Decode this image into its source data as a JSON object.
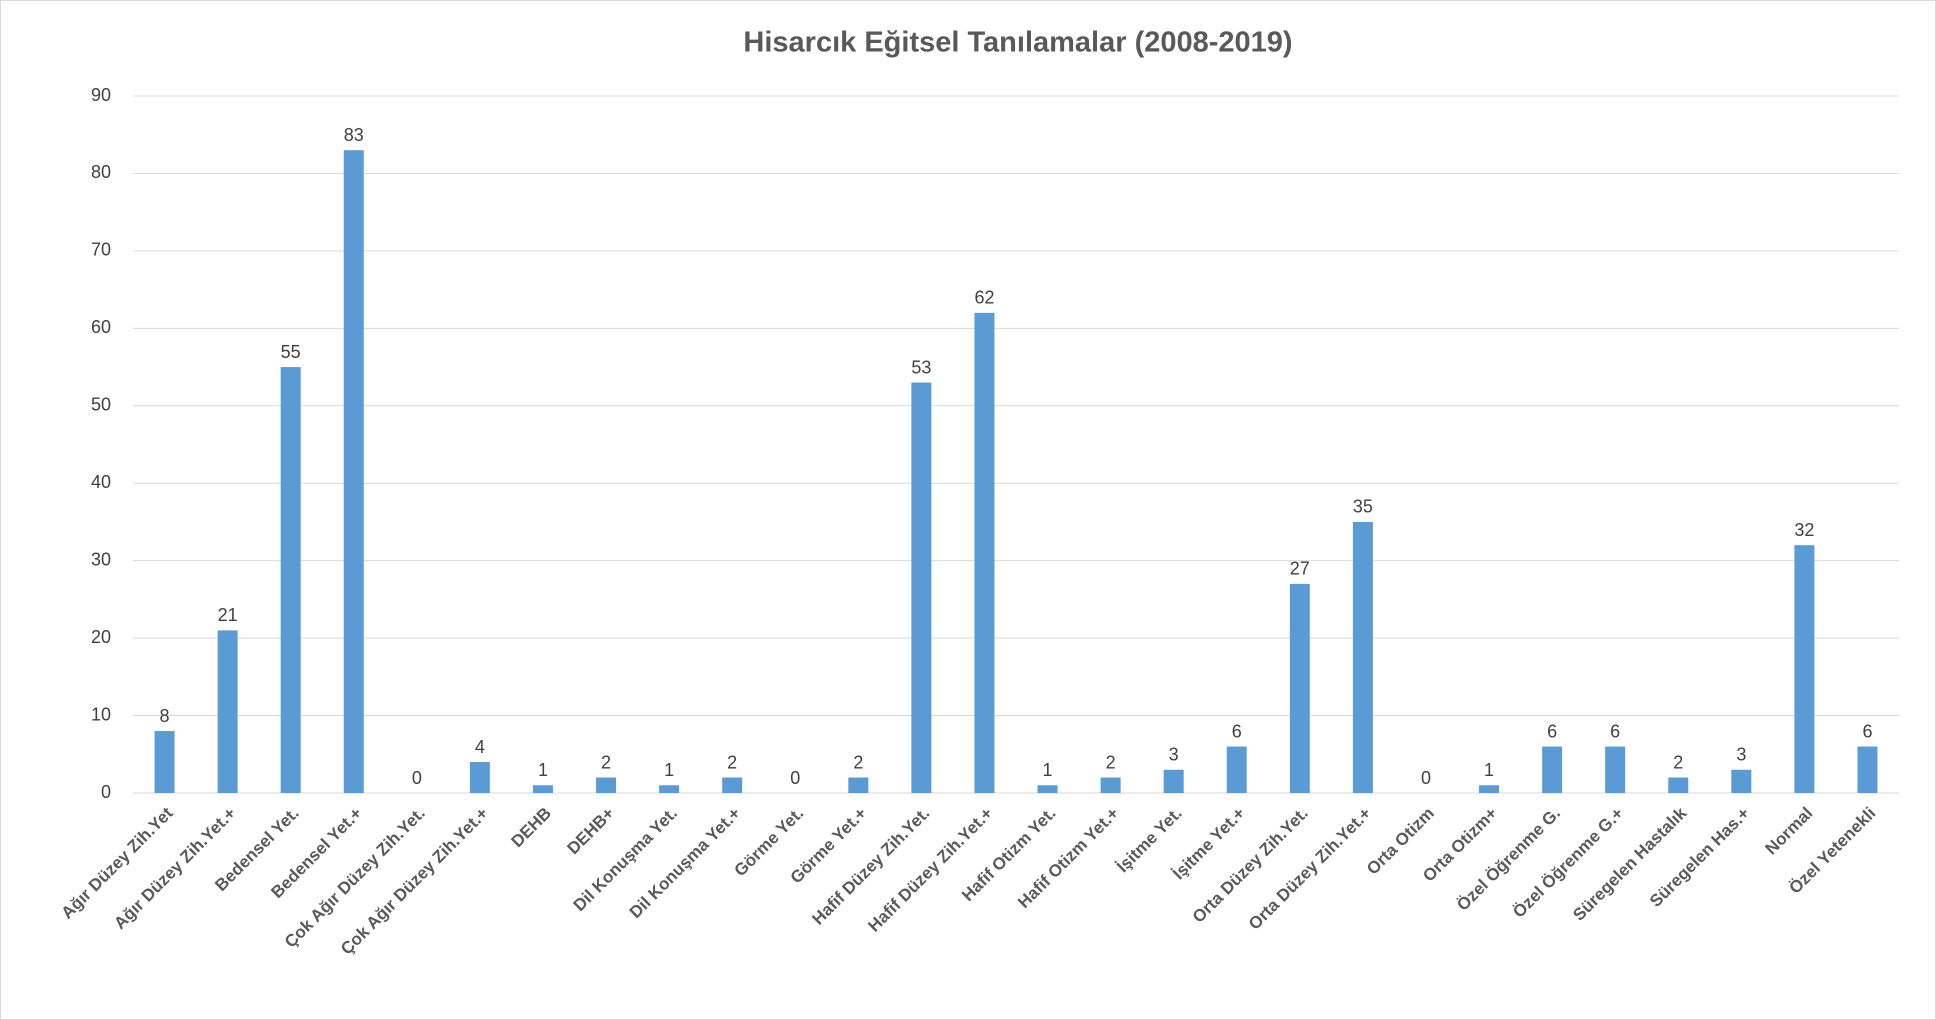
{
  "chart_data": {
    "type": "bar",
    "title": "Hisarcık Eğitsel Tanılamalar (2008-2019)",
    "categories": [
      "Ağır Düzey Zih.Yet",
      "Ağır Düzey Zih.Yet.+",
      "Bedensel Yet.",
      "Bedensel Yet.+",
      "Çok Ağır Düzey Zih.Yet.",
      "Çok Ağır Düzey Zih.Yet.+",
      "DEHB",
      "DEHB+",
      "Dil Konuşma Yet.",
      "Dil Konuşma Yet.+",
      "Görme Yet.",
      "Görme Yet.+",
      "Hafif Düzey Zih.Yet.",
      "Hafif Düzey Zih.Yet.+",
      "Hafif Otizm Yet.",
      "Hafif Otizm Yet.+",
      "İşitme Yet.",
      "İşitme Yet.+",
      "Orta Düzey Zih.Yet.",
      "Orta Düzey Zih.Yet.+",
      "Orta Otizm",
      "Orta Otizm+",
      "Özel Öğrenme G.",
      "Özel Öğrenme G.+",
      "Süregelen Hastalık",
      "Süregelen Has.+",
      "Normal",
      "Özel Yetenekli"
    ],
    "values": [
      8,
      21,
      55,
      83,
      0,
      4,
      1,
      2,
      1,
      2,
      0,
      2,
      53,
      62,
      1,
      2,
      3,
      6,
      27,
      35,
      0,
      1,
      6,
      6,
      2,
      3,
      32,
      6
    ],
    "color": "#5b9bd5",
    "ylim": [
      0,
      90
    ],
    "yticks": [
      0,
      10,
      20,
      30,
      40,
      50,
      60,
      70,
      80,
      90
    ],
    "grid": true
  }
}
